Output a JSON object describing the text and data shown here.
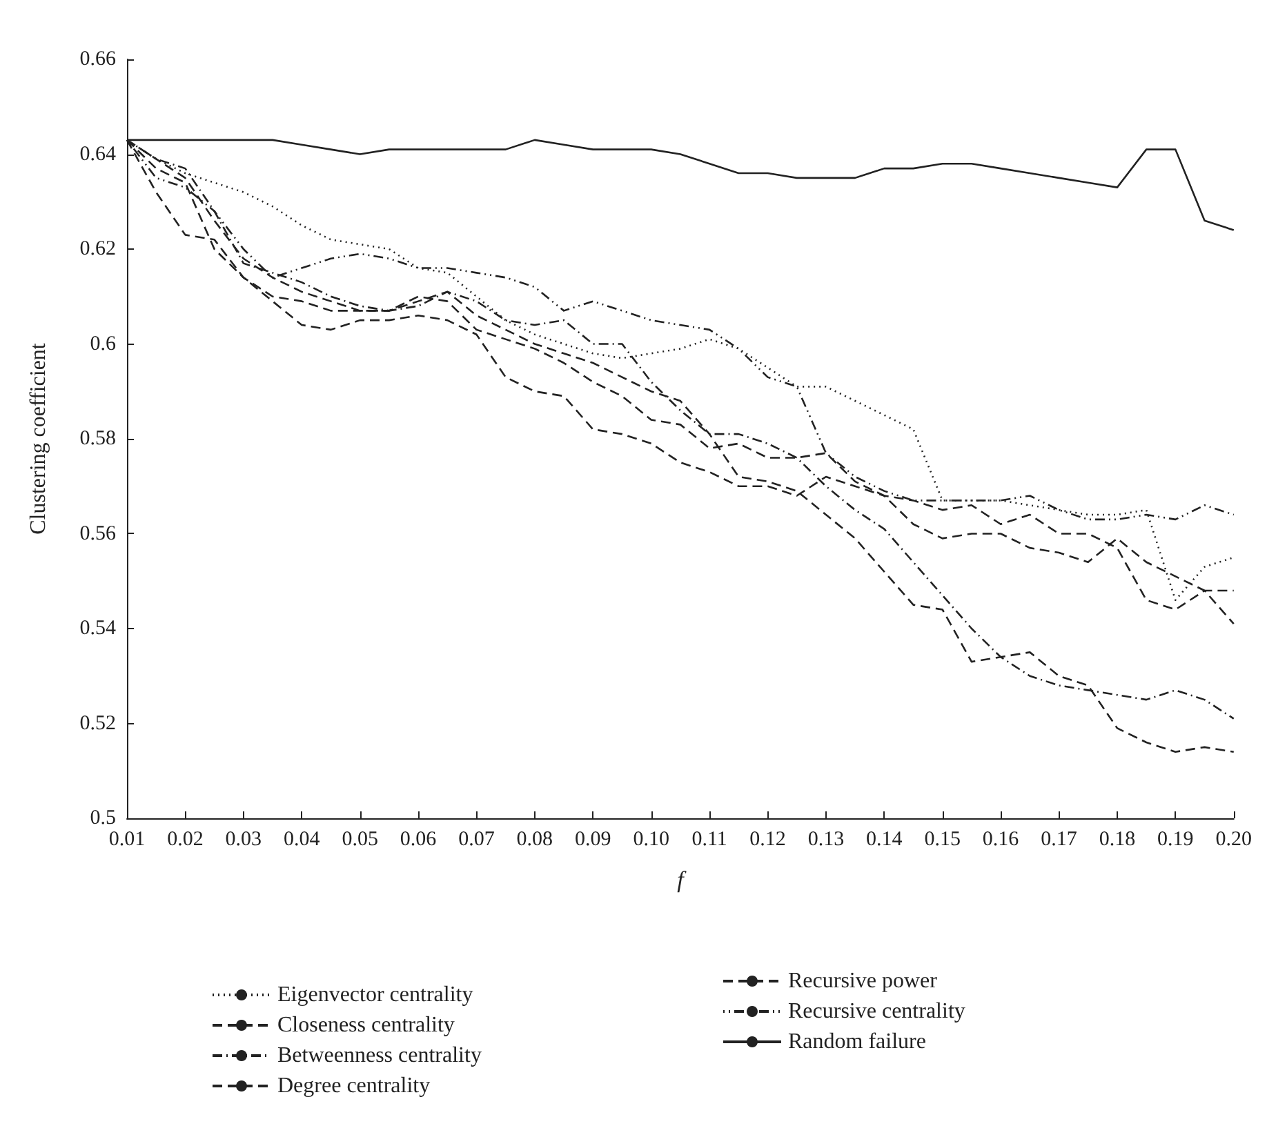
{
  "chart_data": {
    "type": "line",
    "xlabel": "f",
    "ylabel": "Clustering coefficient",
    "x": [
      0.01,
      0.015,
      0.02,
      0.025,
      0.03,
      0.035,
      0.04,
      0.045,
      0.05,
      0.055,
      0.06,
      0.065,
      0.07,
      0.075,
      0.08,
      0.085,
      0.09,
      0.095,
      0.1,
      0.105,
      0.11,
      0.115,
      0.12,
      0.125,
      0.13,
      0.135,
      0.14,
      0.145,
      0.15,
      0.155,
      0.16,
      0.165,
      0.17,
      0.175,
      0.18,
      0.185,
      0.19,
      0.195,
      0.2
    ],
    "xlim": [
      0.01,
      0.2
    ],
    "xticks": [
      0.01,
      0.02,
      0.03,
      0.04,
      0.05,
      0.06,
      0.07,
      0.08,
      0.09,
      {
        "value": 0.1,
        "label": "0.10"
      },
      0.11,
      0.12,
      0.13,
      0.14,
      0.15,
      0.16,
      0.17,
      0.18,
      0.19,
      {
        "value": 0.2,
        "label": "0.20"
      }
    ],
    "ylim": [
      0.5,
      0.66
    ],
    "yticks": [
      0.5,
      0.52,
      0.54,
      0.56,
      0.58,
      0.6,
      0.62,
      0.64,
      0.66
    ],
    "grid": false,
    "legend": "bottom",
    "marker": "none",
    "series": [
      {
        "name": "Eigenvector centrality",
        "color": "#222222",
        "line_style": "dotted",
        "values": [
          0.643,
          0.639,
          0.636,
          0.634,
          0.632,
          0.629,
          0.625,
          0.622,
          0.621,
          0.62,
          0.616,
          0.615,
          0.61,
          0.605,
          0.602,
          0.6,
          0.598,
          0.597,
          0.598,
          0.599,
          0.601,
          0.599,
          0.595,
          0.591,
          0.591,
          0.588,
          0.585,
          0.582,
          0.567,
          0.567,
          0.567,
          0.566,
          0.565,
          0.564,
          0.564,
          0.565,
          0.546,
          0.553,
          0.555
        ]
      },
      {
        "name": "Closeness centrality",
        "color": "#222222",
        "line_style": "dashed",
        "values": [
          0.643,
          0.632,
          0.623,
          0.622,
          0.614,
          0.609,
          0.604,
          0.603,
          0.605,
          0.605,
          0.606,
          0.605,
          0.602,
          0.593,
          0.59,
          0.589,
          0.582,
          0.581,
          0.579,
          0.575,
          0.573,
          0.57,
          0.57,
          0.568,
          0.572,
          0.57,
          0.568,
          0.567,
          0.565,
          0.566,
          0.562,
          0.564,
          0.56,
          0.56,
          0.557,
          0.546,
          0.544,
          0.548,
          0.548
        ]
      },
      {
        "name": "Betweenness centrality",
        "color": "#222222",
        "line_style": "dashdot",
        "values": [
          0.643,
          0.639,
          0.637,
          0.628,
          0.617,
          0.615,
          0.613,
          0.61,
          0.608,
          0.607,
          0.608,
          0.611,
          0.609,
          0.605,
          0.604,
          0.605,
          0.6,
          0.6,
          0.592,
          0.586,
          0.581,
          0.581,
          0.579,
          0.576,
          0.57,
          0.565,
          0.561,
          0.554,
          0.547,
          0.54,
          0.534,
          0.53,
          0.528,
          0.527,
          0.526,
          0.525,
          0.527,
          0.525,
          0.521
        ]
      },
      {
        "name": "Degree centrality",
        "color": "#222222",
        "line_style": "dashed",
        "values": [
          0.643,
          0.637,
          0.634,
          0.62,
          0.614,
          0.61,
          0.609,
          0.607,
          0.607,
          0.607,
          0.609,
          0.611,
          0.606,
          0.603,
          0.6,
          0.598,
          0.596,
          0.593,
          0.59,
          0.588,
          0.581,
          0.572,
          0.571,
          0.569,
          0.564,
          0.559,
          0.552,
          0.545,
          0.544,
          0.533,
          0.534,
          0.535,
          0.53,
          0.528,
          0.519,
          0.516,
          0.514,
          0.515,
          0.514
        ]
      },
      {
        "name": "Recursive power",
        "color": "#222222",
        "line_style": "dashed",
        "values": [
          0.643,
          0.639,
          0.635,
          0.626,
          0.618,
          0.614,
          0.611,
          0.609,
          0.607,
          0.607,
          0.61,
          0.609,
          0.603,
          0.601,
          0.599,
          0.596,
          0.592,
          0.589,
          0.584,
          0.583,
          0.578,
          0.579,
          0.576,
          0.576,
          0.577,
          0.571,
          0.568,
          0.562,
          0.559,
          0.56,
          0.56,
          0.557,
          0.556,
          0.554,
          0.559,
          0.554,
          0.551,
          0.548,
          0.541
        ]
      },
      {
        "name": "Recursive centrality",
        "color": "#222222",
        "line_style": "dashdotdot",
        "values": [
          0.643,
          0.635,
          0.633,
          0.628,
          0.62,
          0.614,
          0.616,
          0.618,
          0.619,
          0.618,
          0.616,
          0.616,
          0.615,
          0.614,
          0.612,
          0.607,
          0.609,
          0.607,
          0.605,
          0.604,
          0.603,
          0.599,
          0.593,
          0.591,
          0.577,
          0.572,
          0.569,
          0.567,
          0.567,
          0.567,
          0.567,
          0.568,
          0.565,
          0.563,
          0.563,
          0.564,
          0.563,
          0.566,
          0.564
        ]
      },
      {
        "name": "Random failure",
        "color": "#222222",
        "line_style": "solid",
        "values": [
          0.643,
          0.643,
          0.643,
          0.643,
          0.643,
          0.643,
          0.642,
          0.641,
          0.64,
          0.641,
          0.641,
          0.641,
          0.641,
          0.641,
          0.643,
          0.642,
          0.641,
          0.641,
          0.641,
          0.64,
          0.638,
          0.636,
          0.636,
          0.635,
          0.635,
          0.635,
          0.637,
          0.637,
          0.638,
          0.638,
          0.637,
          0.636,
          0.635,
          0.634,
          0.633,
          0.641,
          0.641,
          0.626,
          0.624
        ]
      }
    ]
  }
}
